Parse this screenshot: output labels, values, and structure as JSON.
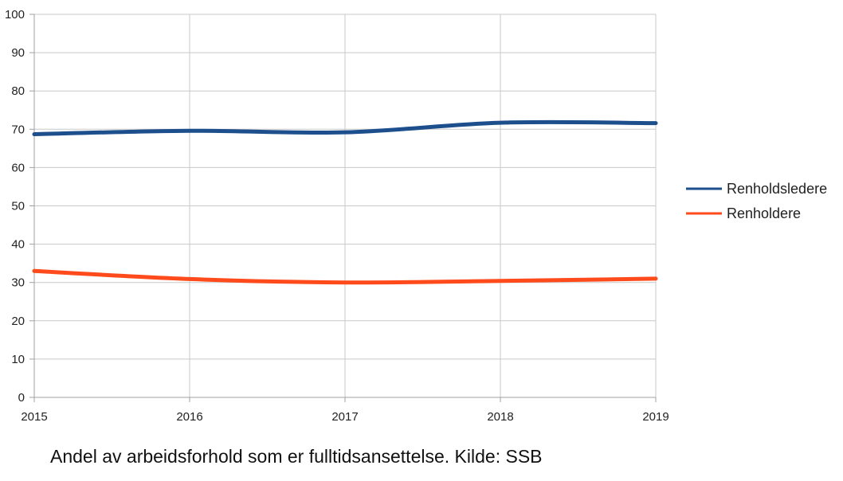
{
  "chart_data": {
    "type": "line",
    "title": "",
    "xlabel": "",
    "ylabel": "",
    "x": [
      "2015",
      "2016",
      "2017",
      "2018",
      "2019"
    ],
    "ylim": [
      0,
      100
    ],
    "yticks": [
      0,
      10,
      20,
      30,
      40,
      50,
      60,
      70,
      80,
      90,
      100
    ],
    "grid": true,
    "legend_position": "right",
    "series": [
      {
        "name": "Renholdsledere",
        "color": "#1d4f8c",
        "values": [
          68.7,
          69.6,
          69.2,
          71.7,
          71.6
        ]
      },
      {
        "name": "Renholdere",
        "color": "#ff4a1c",
        "values": [
          33.0,
          30.9,
          30.0,
          30.4,
          31.0
        ]
      }
    ]
  },
  "caption": "Andel av arbeidsforhold som er fulltidsansettelse. Kilde: SSB"
}
